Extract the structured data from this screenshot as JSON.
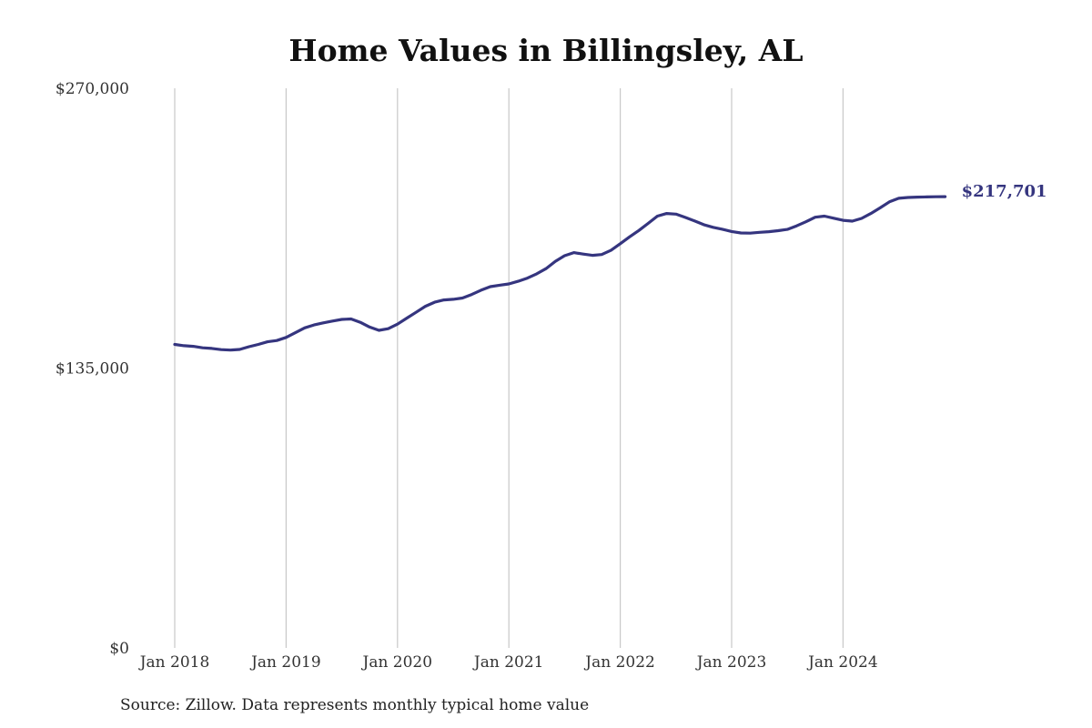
{
  "chart_data": {
    "type": "line",
    "title": "Home Values in Billingsley, AL",
    "xlabel": "",
    "ylabel": "",
    "x_ticks": [
      "Jan 2018",
      "Jan 2019",
      "Jan 2020",
      "Jan 2021",
      "Jan 2022",
      "Jan 2023",
      "Jan 2024"
    ],
    "y_ticks": [
      "$270,000",
      "$135,000",
      "$0"
    ],
    "ylim": [
      0,
      270000
    ],
    "xlim": [
      "2018-01",
      "2024-12"
    ],
    "grid": "vertical",
    "legend": "none",
    "color": "#35357f",
    "end_label": "$217,701",
    "series": [
      {
        "x": [
          "2018-01",
          "2018-02",
          "2018-03",
          "2018-04",
          "2018-05",
          "2018-06",
          "2018-07",
          "2018-08",
          "2018-09",
          "2018-10",
          "2018-11",
          "2018-12",
          "2019-01",
          "2019-02",
          "2019-03",
          "2019-04",
          "2019-05",
          "2019-06",
          "2019-07",
          "2019-08",
          "2019-09",
          "2019-10",
          "2019-11",
          "2019-12",
          "2020-01",
          "2020-02",
          "2020-03",
          "2020-04",
          "2020-05",
          "2020-06",
          "2020-07",
          "2020-08",
          "2020-09",
          "2020-10",
          "2020-11",
          "2020-12",
          "2021-01",
          "2021-02",
          "2021-03",
          "2021-04",
          "2021-05",
          "2021-06",
          "2021-07",
          "2021-08",
          "2021-09",
          "2021-10",
          "2021-11",
          "2021-12",
          "2022-01",
          "2022-02",
          "2022-03",
          "2022-04",
          "2022-05",
          "2022-06",
          "2022-07",
          "2022-08",
          "2022-09",
          "2022-10",
          "2022-11",
          "2022-12",
          "2023-01",
          "2023-02",
          "2023-03",
          "2023-04",
          "2023-05",
          "2023-06",
          "2023-07",
          "2023-08",
          "2023-09",
          "2023-10",
          "2023-11",
          "2023-12",
          "2024-01",
          "2024-02",
          "2024-03",
          "2024-04",
          "2024-05",
          "2024-06",
          "2024-07",
          "2024-08",
          "2024-09",
          "2024-10",
          "2024-11",
          "2024-12"
        ],
        "y": [
          146400,
          145800,
          145500,
          144800,
          144500,
          143900,
          143700,
          144000,
          145300,
          146400,
          147700,
          148300,
          149800,
          152100,
          154400,
          155800,
          156800,
          157700,
          158500,
          158700,
          157100,
          154800,
          153200,
          154000,
          156200,
          159100,
          161900,
          164800,
          166800,
          167900,
          168200,
          168800,
          170500,
          172600,
          174300,
          175000,
          175600,
          176900,
          178400,
          180500,
          183000,
          186500,
          189200,
          190700,
          190000,
          189400,
          189800,
          191800,
          195000,
          198300,
          201400,
          204800,
          208300,
          209600,
          209300,
          207700,
          206000,
          204200,
          202900,
          202000,
          200900,
          200200,
          200100,
          200500,
          200800,
          201300,
          201900,
          203600,
          205600,
          207800,
          208300,
          207300,
          206300,
          205900,
          207200,
          209600,
          212300,
          215200,
          216900,
          217300,
          217500,
          217600,
          217650,
          217701
        ]
      }
    ]
  },
  "footer": {
    "source": "Source: Zillow. Data represents monthly typical home value"
  }
}
